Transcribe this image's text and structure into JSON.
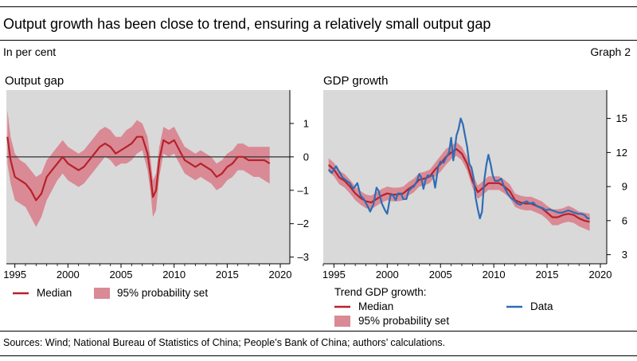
{
  "header": {
    "title": "Output growth has been close to trend, ensuring a relatively small output gap",
    "unit": "In per cent",
    "graph_no": "Graph 2"
  },
  "colors": {
    "median": "#b5222b",
    "band": "#d98a95",
    "data": "#2f6db5",
    "plot_bg": "#d9d9d9"
  },
  "legend": {
    "median": "Median",
    "band": "95% probability set",
    "trend_title": "Trend GDP growth:",
    "data": "Data"
  },
  "sources": "Sources: Wind; National Bureau of Statistics of China; People’s Bank of China; authors’ calculations.",
  "chart_data": [
    {
      "id": "output-gap",
      "type": "line",
      "title": "Output gap",
      "xlim": [
        1994.2,
        2020.9
      ],
      "ylim": [
        -3.2,
        2.0
      ],
      "x_ticks": [
        1995,
        2000,
        2005,
        2010,
        2015,
        2020
      ],
      "x_tick_labels": [
        "1995",
        "2000",
        "2005",
        "2010",
        "2015",
        "2020"
      ],
      "y_ticks": [
        1,
        0,
        -1,
        -2,
        -3
      ],
      "y_tick_labels": [
        "1",
        "0",
        "–1",
        "–2",
        "–3"
      ],
      "zero_line": 0,
      "x": [
        1994.3,
        1994.6,
        1995.0,
        1995.5,
        1996.0,
        1996.5,
        1997.0,
        1997.5,
        1998.0,
        1998.5,
        1999.0,
        1999.5,
        2000.0,
        2000.5,
        2001.0,
        2001.5,
        2002.0,
        2002.5,
        2003.0,
        2003.5,
        2004.0,
        2004.5,
        2005.0,
        2005.5,
        2006.0,
        2006.5,
        2007.0,
        2007.5,
        2007.8,
        2008.0,
        2008.3,
        2008.6,
        2009.0,
        2009.5,
        2010.0,
        2010.5,
        2011.0,
        2011.5,
        2012.0,
        2012.5,
        2013.0,
        2013.5,
        2014.0,
        2014.5,
        2015.0,
        2015.5,
        2016.0,
        2016.5,
        2017.0,
        2017.5,
        2018.0,
        2018.5,
        2019.0
      ],
      "series": [
        {
          "name": "Median",
          "values": [
            0.6,
            -0.1,
            -0.6,
            -0.7,
            -0.8,
            -1.0,
            -1.3,
            -1.1,
            -0.6,
            -0.4,
            -0.2,
            0.0,
            -0.2,
            -0.3,
            -0.4,
            -0.3,
            -0.1,
            0.1,
            0.3,
            0.4,
            0.3,
            0.1,
            0.2,
            0.3,
            0.4,
            0.6,
            0.6,
            0.1,
            -0.6,
            -1.2,
            -1.0,
            -0.1,
            0.5,
            0.4,
            0.5,
            0.2,
            -0.1,
            -0.2,
            -0.3,
            -0.2,
            -0.3,
            -0.4,
            -0.6,
            -0.5,
            -0.3,
            -0.2,
            0.0,
            0.0,
            -0.1,
            -0.1,
            -0.1,
            -0.1,
            -0.2
          ]
        },
        {
          "name": "95% probability set (upper)",
          "values": [
            1.4,
            0.6,
            0.1,
            -0.1,
            -0.2,
            -0.4,
            -0.6,
            -0.5,
            -0.1,
            0.1,
            0.3,
            0.5,
            0.3,
            0.2,
            0.1,
            0.2,
            0.4,
            0.6,
            0.8,
            0.9,
            0.8,
            0.6,
            0.6,
            0.8,
            0.9,
            1.1,
            1.0,
            0.6,
            -0.1,
            -0.7,
            -0.5,
            0.3,
            0.9,
            0.8,
            0.9,
            0.6,
            0.3,
            0.2,
            0.1,
            0.2,
            0.1,
            0.0,
            -0.2,
            -0.1,
            0.1,
            0.2,
            0.4,
            0.4,
            0.3,
            0.3,
            0.3,
            0.3,
            0.3
          ]
        },
        {
          "name": "95% probability set (lower)",
          "values": [
            -0.2,
            -0.8,
            -1.3,
            -1.4,
            -1.5,
            -1.8,
            -2.1,
            -1.8,
            -1.3,
            -1.0,
            -0.7,
            -0.5,
            -0.7,
            -0.8,
            -0.9,
            -0.8,
            -0.6,
            -0.4,
            -0.2,
            0.0,
            -0.1,
            -0.3,
            -0.2,
            -0.2,
            -0.1,
            0.1,
            0.2,
            -0.4,
            -1.1,
            -1.8,
            -1.6,
            -0.6,
            0.1,
            0.0,
            0.1,
            -0.2,
            -0.5,
            -0.6,
            -0.7,
            -0.6,
            -0.7,
            -0.8,
            -1.0,
            -0.9,
            -0.7,
            -0.6,
            -0.4,
            -0.4,
            -0.5,
            -0.6,
            -0.6,
            -0.7,
            -0.8
          ]
        }
      ]
    },
    {
      "id": "gdp-growth",
      "type": "line",
      "title": "GDP growth",
      "xlim": [
        1994.0,
        2020.6
      ],
      "ylim": [
        2.2,
        17.5
      ],
      "x_ticks": [
        1995,
        2000,
        2005,
        2010,
        2015,
        2020
      ],
      "x_tick_labels": [
        "1995",
        "2000",
        "2005",
        "2010",
        "2015",
        "2020"
      ],
      "y_ticks": [
        15,
        12,
        9,
        6,
        3
      ],
      "y_tick_labels": [
        "15",
        "12",
        "9",
        "6",
        "3"
      ],
      "series": [
        {
          "name": "Median",
          "x": [
            1994.5,
            1995.0,
            1995.5,
            1996.0,
            1996.5,
            1997.0,
            1997.5,
            1998.0,
            1998.5,
            1999.0,
            1999.5,
            2000.0,
            2000.5,
            2001.0,
            2001.5,
            2002.0,
            2002.5,
            2003.0,
            2003.5,
            2004.0,
            2004.5,
            2005.0,
            2005.5,
            2006.0,
            2006.5,
            2007.0,
            2007.5,
            2008.0,
            2008.5,
            2009.0,
            2009.5,
            2010.0,
            2010.5,
            2011.0,
            2011.5,
            2012.0,
            2012.5,
            2013.0,
            2013.5,
            2014.0,
            2014.5,
            2015.0,
            2015.5,
            2016.0,
            2016.5,
            2017.0,
            2017.5,
            2018.0,
            2018.5,
            2019.0
          ],
          "values": [
            10.9,
            10.5,
            9.8,
            9.5,
            9.0,
            8.4,
            8.0,
            7.7,
            7.6,
            7.9,
            8.2,
            8.4,
            8.3,
            8.3,
            8.4,
            8.8,
            9.1,
            9.6,
            9.7,
            9.9,
            10.5,
            11.0,
            11.6,
            12.0,
            12.3,
            11.9,
            11.0,
            9.5,
            8.5,
            8.9,
            9.3,
            9.3,
            9.3,
            9.0,
            8.6,
            7.8,
            7.6,
            7.5,
            7.5,
            7.3,
            7.1,
            6.7,
            6.3,
            6.3,
            6.5,
            6.6,
            6.5,
            6.2,
            6.0,
            5.9
          ]
        },
        {
          "name": "95% probability set (upper)",
          "x": [
            1994.5,
            1995.0,
            1995.5,
            1996.0,
            1996.5,
            1997.0,
            1997.5,
            1998.0,
            1998.5,
            1999.0,
            1999.5,
            2000.0,
            2000.5,
            2001.0,
            2001.5,
            2002.0,
            2002.5,
            2003.0,
            2003.5,
            2004.0,
            2004.5,
            2005.0,
            2005.5,
            2006.0,
            2006.5,
            2007.0,
            2007.5,
            2008.0,
            2008.5,
            2009.0,
            2009.5,
            2010.0,
            2010.5,
            2011.0,
            2011.5,
            2012.0,
            2012.5,
            2013.0,
            2013.5,
            2014.0,
            2014.5,
            2015.0,
            2015.5,
            2016.0,
            2016.5,
            2017.0,
            2017.5,
            2018.0,
            2018.5,
            2019.0
          ],
          "values": [
            11.5,
            11.1,
            10.4,
            10.1,
            9.6,
            9.0,
            8.6,
            8.3,
            8.2,
            8.5,
            8.8,
            9.0,
            8.9,
            8.9,
            9.0,
            9.4,
            9.7,
            10.2,
            10.3,
            10.5,
            11.1,
            11.7,
            12.3,
            12.6,
            12.9,
            12.5,
            11.6,
            10.1,
            9.1,
            9.5,
            9.9,
            9.9,
            9.9,
            9.6,
            9.2,
            8.4,
            8.2,
            8.1,
            8.1,
            7.9,
            7.7,
            7.3,
            7.0,
            7.0,
            7.1,
            7.3,
            7.1,
            6.8,
            6.7,
            6.6
          ]
        },
        {
          "name": "95% probability set (lower)",
          "x": [
            1994.5,
            1995.0,
            1995.5,
            1996.0,
            1996.5,
            1997.0,
            1997.5,
            1998.0,
            1998.5,
            1999.0,
            1999.5,
            2000.0,
            2000.5,
            2001.0,
            2001.5,
            2002.0,
            2002.5,
            2003.0,
            2003.5,
            2004.0,
            2004.5,
            2005.0,
            2005.5,
            2006.0,
            2006.5,
            2007.0,
            2007.5,
            2008.0,
            2008.5,
            2009.0,
            2009.5,
            2010.0,
            2010.5,
            2011.0,
            2011.5,
            2012.0,
            2012.5,
            2013.0,
            2013.5,
            2014.0,
            2014.5,
            2015.0,
            2015.5,
            2016.0,
            2016.5,
            2017.0,
            2017.5,
            2018.0,
            2018.5,
            2019.0
          ],
          "values": [
            10.3,
            9.9,
            9.2,
            8.9,
            8.4,
            7.8,
            7.4,
            7.1,
            7.0,
            7.3,
            7.6,
            7.8,
            7.7,
            7.7,
            7.8,
            8.2,
            8.5,
            9.0,
            9.1,
            9.3,
            9.9,
            10.3,
            10.9,
            11.4,
            11.7,
            11.3,
            10.4,
            8.9,
            7.9,
            8.3,
            8.7,
            8.7,
            8.7,
            8.4,
            8.0,
            7.2,
            7.0,
            6.9,
            6.9,
            6.7,
            6.5,
            6.1,
            5.6,
            5.6,
            5.8,
            5.9,
            5.8,
            5.5,
            5.3,
            5.1
          ]
        },
        {
          "name": "Data",
          "x": [
            1994.5,
            1994.8,
            1995.2,
            1995.5,
            1995.8,
            1996.2,
            1996.5,
            1996.8,
            1997.2,
            1997.5,
            1997.8,
            1998.2,
            1998.4,
            1998.7,
            1999.0,
            1999.2,
            1999.5,
            1999.8,
            2000.0,
            2000.3,
            2000.5,
            2000.8,
            2001.0,
            2001.3,
            2001.5,
            2001.8,
            2002.0,
            2002.3,
            2002.5,
            2002.8,
            2003.0,
            2003.2,
            2003.4,
            2003.6,
            2003.8,
            2004.0,
            2004.3,
            2004.5,
            2004.8,
            2005.0,
            2005.3,
            2005.5,
            2005.8,
            2006.0,
            2006.2,
            2006.5,
            2006.7,
            2006.9,
            2007.1,
            2007.3,
            2007.5,
            2007.7,
            2007.9,
            2008.1,
            2008.3,
            2008.5,
            2008.7,
            2008.9,
            2009.1,
            2009.3,
            2009.5,
            2009.7,
            2009.9,
            2010.1,
            2010.4,
            2010.7,
            2011.0,
            2011.3,
            2011.6,
            2011.9,
            2012.2,
            2012.5,
            2012.8,
            2013.1,
            2013.4,
            2013.7,
            2014.0,
            2014.3,
            2014.6,
            2014.9,
            2015.2,
            2015.5,
            2015.8,
            2016.1,
            2016.4,
            2016.7,
            2017.0,
            2017.3,
            2017.6,
            2017.9,
            2018.2,
            2018.5,
            2018.8,
            2019.0
          ],
          "values": [
            10.5,
            10.2,
            10.8,
            10.3,
            9.8,
            9.5,
            9.3,
            8.8,
            9.3,
            8.2,
            7.9,
            7.2,
            6.8,
            7.4,
            8.9,
            8.6,
            7.5,
            6.9,
            6.6,
            8.2,
            8.3,
            7.8,
            8.4,
            8.4,
            7.9,
            7.9,
            8.6,
            8.9,
            9.0,
            9.5,
            10.1,
            9.8,
            8.8,
            9.6,
            10.0,
            9.9,
            10.0,
            8.9,
            10.8,
            11.2,
            11.1,
            11.5,
            12.0,
            13.3,
            11.3,
            13.5,
            14.1,
            15.0,
            14.5,
            13.5,
            12.5,
            11.0,
            10.7,
            9.8,
            8.0,
            7.0,
            6.2,
            6.8,
            9.5,
            10.9,
            11.8,
            11.0,
            10.0,
            9.5,
            9.5,
            9.7,
            8.9,
            8.4,
            8.0,
            7.8,
            7.5,
            7.4,
            7.6,
            7.7,
            7.5,
            7.6,
            7.3,
            7.2,
            7.1,
            6.9,
            7.0,
            6.9,
            6.8,
            6.7,
            6.7,
            6.8,
            6.9,
            6.8,
            6.7,
            6.6,
            6.6,
            6.5,
            6.2,
            6.2
          ]
        }
      ]
    }
  ]
}
